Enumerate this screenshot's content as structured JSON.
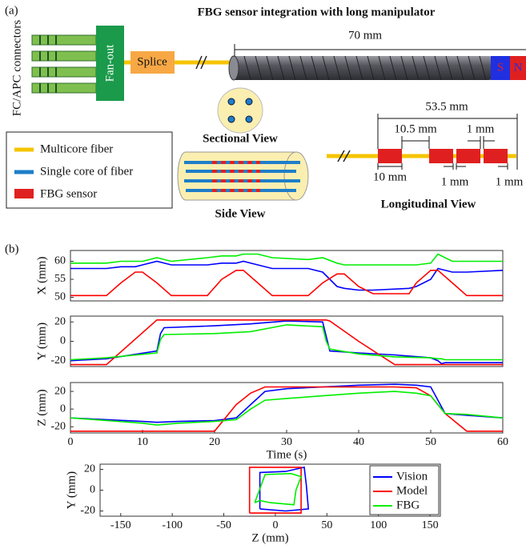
{
  "panel_a": {
    "label": "(a)",
    "title": "FBG sensor integration with long manipulator",
    "connectors_label": "FC/APC connectors",
    "fanout": "Fan-out",
    "splice": "Splice",
    "length_total": "70 mm",
    "s": "S",
    "n": "N",
    "sectional_view": "Sectional View",
    "side_view": "Side View",
    "legend": [
      "Multicore fiber",
      "Single core of fiber",
      "FBG sensor"
    ],
    "longitudinal": {
      "total": "53.5 mm",
      "spacing": "10.5 mm",
      "gap_top": "1 mm",
      "sensor_length": "10 mm",
      "gap_1": "1 mm",
      "gap_2": "1 mm",
      "title": "Longitudinal View"
    }
  },
  "panel_b_label": "(b)",
  "chart_data": [
    {
      "type": "line",
      "ylabel": "X (mm)",
      "xlim": [
        0,
        60
      ],
      "ylim": [
        49,
        63
      ],
      "yticks": [
        50,
        55,
        60
      ],
      "x": [
        0,
        5,
        7,
        9,
        10,
        12,
        14,
        19,
        21,
        23,
        24,
        26,
        28,
        33,
        35,
        37,
        38,
        40,
        42,
        47,
        48,
        50,
        51,
        53,
        55,
        60
      ],
      "series": [
        {
          "color": "#0000ff",
          "values": [
            58,
            58,
            58.5,
            58.5,
            59,
            60,
            59,
            59,
            59.5,
            59.5,
            60,
            59,
            58,
            58,
            57,
            53,
            52.5,
            52,
            52,
            52.5,
            53,
            55,
            58,
            57,
            57,
            57.5
          ]
        },
        {
          "color": "#ff0000",
          "values": [
            50.5,
            50.5,
            54,
            57,
            57,
            54,
            50.5,
            50.5,
            55,
            57.5,
            57.5,
            54,
            50.5,
            50.5,
            54,
            56.5,
            56.5,
            53,
            51,
            51,
            54,
            57.5,
            57.5,
            54,
            50.5,
            50.5
          ]
        },
        {
          "color": "#00ee00",
          "values": [
            59.5,
            59.5,
            60,
            60,
            60,
            61,
            60,
            61,
            61.5,
            61.5,
            62,
            62,
            61,
            60.5,
            61,
            59.5,
            59,
            59,
            59,
            59,
            59,
            59.5,
            62,
            60,
            60,
            60
          ]
        }
      ]
    },
    {
      "type": "line",
      "ylabel": "Y (mm)",
      "xlim": [
        0,
        60
      ],
      "ylim": [
        -26,
        26
      ],
      "yticks": [
        -20,
        0,
        20
      ],
      "x": [
        0,
        5,
        12,
        12.5,
        13,
        20,
        25,
        30,
        35,
        35.5,
        36,
        40,
        45,
        50,
        51,
        51.5,
        52,
        60
      ],
      "series": [
        {
          "color": "#0000ff",
          "values": [
            -20,
            -18,
            -10,
            8,
            14,
            16,
            18,
            21,
            20,
            5,
            -10,
            -12,
            -14,
            -17,
            -20,
            -23,
            -22,
            -22
          ]
        },
        {
          "color": "#ff0000",
          "values": [
            -24,
            -24,
            22,
            22,
            22,
            22,
            22,
            22,
            22,
            22,
            21,
            0,
            -24,
            -24,
            -24,
            -24,
            -24,
            -24
          ]
        },
        {
          "color": "#00ee00",
          "values": [
            -19,
            -17,
            -12,
            2,
            7,
            8,
            10,
            17,
            15,
            0,
            -8,
            -13,
            -16,
            -17,
            -18,
            -18,
            -19,
            -19
          ]
        }
      ]
    },
    {
      "type": "line",
      "ylabel": "Z (mm)",
      "xlabel": "Time (s)",
      "xlim": [
        0,
        60
      ],
      "ylim": [
        -27,
        30
      ],
      "yticks": [
        -20,
        0,
        20
      ],
      "xticks": [
        0,
        10,
        20,
        30,
        40,
        50,
        60
      ],
      "x": [
        0,
        5,
        10,
        12,
        15,
        20,
        23,
        25,
        27,
        30,
        35,
        40,
        45,
        48,
        50,
        52,
        55,
        60
      ],
      "series": [
        {
          "color": "#0000ff",
          "values": [
            -10,
            -12,
            -14,
            -15,
            -14,
            -13,
            -10,
            5,
            20,
            23,
            25,
            27,
            28,
            27,
            25,
            -5,
            -7,
            -10
          ]
        },
        {
          "color": "#ff0000",
          "values": [
            -25,
            -25,
            -25,
            -25,
            -25,
            -25,
            5,
            18,
            25,
            25,
            25,
            25,
            25,
            24,
            15,
            -5,
            -25,
            -25
          ]
        },
        {
          "color": "#00ee00",
          "values": [
            -10,
            -13,
            -16,
            -18,
            -16,
            -14,
            -12,
            0,
            10,
            12,
            15,
            18,
            20,
            18,
            15,
            -5,
            -6,
            -10
          ]
        }
      ]
    },
    {
      "type": "line",
      "ylabel": "Y (mm)",
      "xlabel": "Z (mm)",
      "xlim": [
        -170,
        160
      ],
      "ylim": [
        -25,
        25
      ],
      "yticks": [
        -20,
        0,
        20
      ],
      "xticks": [
        -150,
        -100,
        -50,
        0,
        50,
        100,
        150
      ],
      "legend": "right",
      "series": [
        {
          "name": "Vision",
          "color": "#0000ff",
          "x": [
            -15,
            -15,
            10,
            28,
            30,
            32,
            10,
            -15
          ],
          "values": [
            -18,
            17,
            18,
            22,
            5,
            -18,
            -20,
            -18
          ]
        },
        {
          "name": "Model",
          "color": "#ff0000",
          "x": [
            -25,
            -25,
            25,
            25,
            -25
          ],
          "values": [
            -22,
            22,
            22,
            -22,
            -22
          ]
        },
        {
          "name": "FBG",
          "color": "#00ee00",
          "x": [
            -20,
            -10,
            15,
            25,
            20,
            18,
            -5,
            -15,
            -20
          ],
          "values": [
            -12,
            15,
            16,
            13,
            0,
            -14,
            -12,
            -10,
            -12
          ]
        }
      ]
    }
  ]
}
